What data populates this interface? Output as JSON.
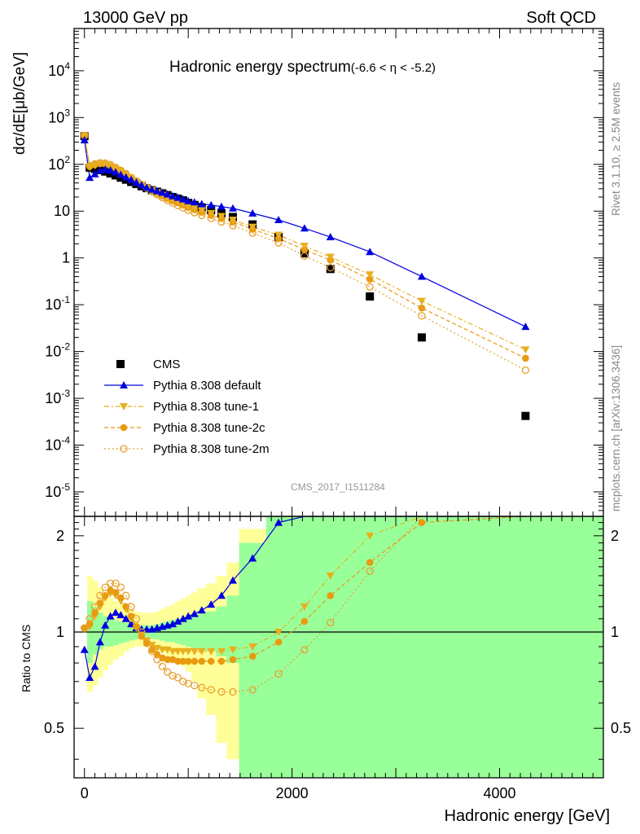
{
  "header": {
    "left": "13000 GeV pp",
    "right": "Soft QCD"
  },
  "side_text": {
    "top": "Rivet 3.1.10, ≥ 2.5M events",
    "bottom": "mcplots.cern.ch [arXiv:1306.3436]"
  },
  "watermark": "CMS_2017_I1511284",
  "chart_data": {
    "type": "line",
    "title": "Hadronic energy spectrum",
    "title_suffix": "(-6.6 < η < -5.2)",
    "ylabel": "dσ/dE[μb/GeV]",
    "xlabel": "Hadronic energy [GeV]",
    "ratio_ylabel": "Ratio to CMS",
    "xlim": [
      -100,
      5000
    ],
    "ylim_main": [
      3e-06,
      80000
    ],
    "ylog_main": true,
    "ylim_ratio": [
      0.35,
      2.3
    ],
    "ratio_scale": "log",
    "x_ticks": [
      "0",
      "2000",
      "4000"
    ],
    "y_ticks_main": [
      "10^-5",
      "10^-4",
      "10^-3",
      "10^-2",
      "10^-1",
      "1",
      "10",
      "10^2",
      "10^3",
      "10^4"
    ],
    "y_ticks_ratio": [
      "0.5",
      "1",
      "2"
    ],
    "legend_position": "bottom-left",
    "cms": {
      "name": "CMS",
      "color": "#000000",
      "x": [
        0,
        50,
        100,
        150,
        200,
        250,
        300,
        350,
        400,
        450,
        500,
        550,
        600,
        650,
        700,
        750,
        800,
        850,
        900,
        950,
        1000,
        1060,
        1130,
        1220,
        1320,
        1430,
        1620,
        1870,
        2120,
        2370,
        2750,
        3250,
        4250
      ],
      "y": [
        400,
        85,
        80,
        75,
        70,
        64,
        58,
        52,
        47,
        42,
        38,
        34,
        31,
        28,
        26,
        24,
        22,
        20,
        18.5,
        17,
        15,
        13.5,
        12,
        10.5,
        9,
        7.5,
        5.2,
        2.8,
        1.25,
        0.58,
        0.15,
        0.02,
        0.00042
      ]
    },
    "series": [
      {
        "name": "Pythia 8.308 default",
        "color": "#0000e0",
        "marker": "triangle-up-filled",
        "dash": "",
        "x": [
          0,
          50,
          100,
          150,
          200,
          250,
          300,
          350,
          400,
          450,
          500,
          550,
          600,
          650,
          700,
          750,
          800,
          850,
          900,
          950,
          1000,
          1060,
          1130,
          1220,
          1320,
          1430,
          1620,
          1870,
          2120,
          2370,
          2750,
          3250,
          4250
        ],
        "y": [
          330,
          52,
          62,
          74,
          78,
          75,
          68,
          60,
          53,
          47,
          41,
          36,
          32,
          29,
          27,
          25,
          23,
          21,
          19.5,
          18,
          16.5,
          15.5,
          14.2,
          13.5,
          12.5,
          11.5,
          9,
          6.5,
          4.3,
          2.8,
          1.35,
          0.4,
          0.034
        ],
        "ratio": [
          0.88,
          0.72,
          0.78,
          0.93,
          1.05,
          1.12,
          1.15,
          1.13,
          1.1,
          1.06,
          1.03,
          1.02,
          1.02,
          1.02,
          1.03,
          1.04,
          1.05,
          1.06,
          1.08,
          1.1,
          1.12,
          1.14,
          1.17,
          1.22,
          1.3,
          1.45,
          1.7,
          2.2,
          3.4,
          4.8,
          9,
          20,
          80
        ]
      },
      {
        "name": "Pythia 8.308 tune-1",
        "color": "#e8b020",
        "marker": "triangle-down-filled",
        "dash": "6,3,2,3",
        "x": [
          0,
          50,
          100,
          150,
          200,
          250,
          300,
          350,
          400,
          450,
          500,
          550,
          600,
          650,
          700,
          750,
          800,
          850,
          900,
          950,
          1000,
          1060,
          1130,
          1220,
          1320,
          1430,
          1620,
          1870,
          2120,
          2370,
          2750,
          3250,
          4250
        ],
        "y": [
          410,
          88,
          95,
          100,
          98,
          90,
          80,
          70,
          60,
          51,
          43,
          37,
          32,
          28,
          25,
          22,
          19.5,
          17.5,
          16,
          14.5,
          13,
          11.7,
          10.3,
          9,
          7.8,
          6.5,
          4.6,
          3.1,
          1.8,
          1.05,
          0.44,
          0.12,
          0.011
        ],
        "ratio": [
          1.02,
          1.04,
          1.12,
          1.2,
          1.28,
          1.32,
          1.3,
          1.25,
          1.18,
          1.1,
          1.03,
          0.98,
          0.94,
          0.91,
          0.89,
          0.88,
          0.88,
          0.87,
          0.87,
          0.87,
          0.87,
          0.87,
          0.87,
          0.87,
          0.87,
          0.88,
          0.9,
          1.0,
          1.2,
          1.5,
          2.0,
          2.8,
          6
        ]
      },
      {
        "name": "Pythia 8.308 tune-2c",
        "color": "#e89a10",
        "marker": "circle-filled",
        "dash": "5,3",
        "x": [
          0,
          50,
          100,
          150,
          200,
          250,
          300,
          350,
          400,
          450,
          500,
          550,
          600,
          650,
          700,
          750,
          800,
          850,
          900,
          950,
          1000,
          1060,
          1130,
          1220,
          1320,
          1430,
          1620,
          1870,
          2120,
          2370,
          2750,
          3250,
          4250
        ],
        "y": [
          410,
          90,
          98,
          103,
          101,
          93,
          82,
          72,
          61,
          52,
          44,
          37,
          32,
          27.5,
          24,
          21,
          18.5,
          16.5,
          15,
          13.5,
          12,
          10.8,
          9.5,
          8.2,
          7,
          5.9,
          4.1,
          2.6,
          1.5,
          0.9,
          0.35,
          0.085,
          0.0072
        ],
        "ratio": [
          1.03,
          1.06,
          1.15,
          1.23,
          1.3,
          1.35,
          1.33,
          1.28,
          1.2,
          1.12,
          1.04,
          0.97,
          0.92,
          0.88,
          0.85,
          0.83,
          0.82,
          0.82,
          0.81,
          0.81,
          0.81,
          0.81,
          0.81,
          0.81,
          0.81,
          0.82,
          0.84,
          0.93,
          1.08,
          1.3,
          1.65,
          2.2,
          5
        ]
      },
      {
        "name": "Pythia 8.308 tune-2m",
        "color": "#e8a030",
        "marker": "circle-open",
        "dash": "2,3",
        "x": [
          0,
          50,
          100,
          150,
          200,
          250,
          300,
          350,
          400,
          450,
          500,
          550,
          600,
          650,
          700,
          750,
          800,
          850,
          900,
          950,
          1000,
          1060,
          1130,
          1220,
          1320,
          1430,
          1620,
          1870,
          2120,
          2370,
          2750,
          3250,
          4250
        ],
        "y": [
          410,
          92,
          102,
          108,
          106,
          98,
          86,
          74,
          63,
          52,
          44,
          37,
          31,
          26.5,
          22.5,
          19.5,
          17,
          15,
          13.2,
          11.8,
          10.5,
          9.3,
          8.1,
          7,
          5.9,
          4.9,
          3.4,
          2.1,
          1.1,
          0.62,
          0.24,
          0.058,
          0.004
        ],
        "ratio": [
          1.03,
          1.1,
          1.2,
          1.3,
          1.38,
          1.42,
          1.42,
          1.38,
          1.3,
          1.2,
          1.1,
          1.0,
          0.93,
          0.87,
          0.82,
          0.78,
          0.75,
          0.73,
          0.72,
          0.7,
          0.69,
          0.68,
          0.67,
          0.66,
          0.65,
          0.65,
          0.66,
          0.74,
          0.88,
          1.07,
          1.55,
          2.9,
          10
        ]
      }
    ],
    "bands": {
      "green_color": "#99ff99",
      "yellow_color": "#ffff99",
      "x_edges": [
        25,
        75,
        125,
        175,
        225,
        275,
        325,
        375,
        425,
        475,
        525,
        575,
        625,
        675,
        725,
        775,
        825,
        875,
        925,
        975,
        1030,
        1090,
        1170,
        1270,
        1370,
        1490,
        1750,
        2000,
        2250,
        2500,
        3000,
        3500,
        5000
      ],
      "green_lo": [
        0.8,
        0.85,
        0.88,
        0.9,
        0.9,
        0.91,
        0.92,
        0.93,
        0.94,
        0.95,
        0.95,
        0.95,
        0.95,
        0.95,
        0.94,
        0.93,
        0.93,
        0.92,
        0.91,
        0.9,
        0.89,
        0.88,
        0.87,
        0.84,
        0.8,
        0.35,
        0.35,
        0.35,
        0.35,
        0.35,
        0.35,
        0.35
      ],
      "green_hi": [
        1.25,
        1.2,
        1.15,
        1.12,
        1.1,
        1.09,
        1.08,
        1.07,
        1.06,
        1.05,
        1.05,
        1.05,
        1.05,
        1.06,
        1.07,
        1.08,
        1.09,
        1.1,
        1.11,
        1.12,
        1.13,
        1.14,
        1.16,
        1.2,
        1.3,
        1.9,
        2.3,
        2.3,
        2.3,
        2.3,
        2.3,
        2.3
      ],
      "yellow_lo": [
        0.65,
        0.68,
        0.72,
        0.76,
        0.79,
        0.82,
        0.84,
        0.87,
        0.89,
        0.9,
        0.9,
        0.9,
        0.89,
        0.88,
        0.86,
        0.84,
        0.82,
        0.8,
        0.78,
        0.75,
        0.7,
        0.62,
        0.55,
        0.45,
        0.4,
        0.35,
        0.35,
        0.35,
        0.35,
        0.35,
        0.35,
        0.35
      ],
      "yellow_hi": [
        1.5,
        1.45,
        1.38,
        1.32,
        1.28,
        1.25,
        1.22,
        1.2,
        1.18,
        1.16,
        1.15,
        1.15,
        1.15,
        1.16,
        1.18,
        1.2,
        1.22,
        1.25,
        1.27,
        1.3,
        1.33,
        1.37,
        1.42,
        1.5,
        1.65,
        2.1,
        2.3,
        2.3,
        2.3,
        2.3,
        2.3,
        2.3
      ]
    }
  }
}
